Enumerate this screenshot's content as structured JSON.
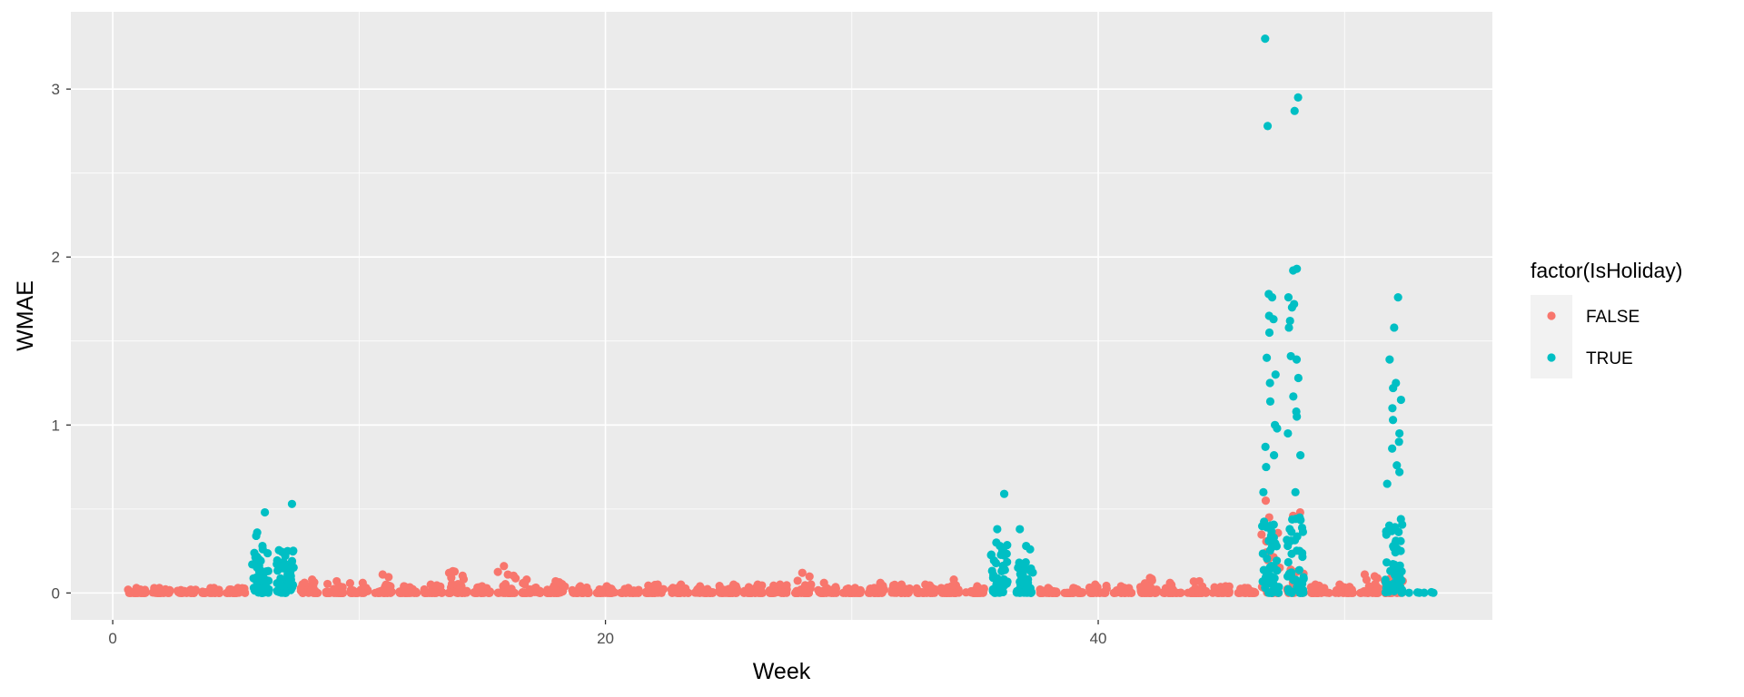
{
  "chart_data": {
    "type": "scatter",
    "xlabel": "Week",
    "ylabel": "WMAE",
    "xlim": [
      -1.7,
      56
    ],
    "ylim": [
      -0.16,
      3.46
    ],
    "x_ticks": [
      0,
      20,
      40
    ],
    "x_tick_labels": [
      "0",
      "20",
      "40"
    ],
    "y_ticks": [
      0,
      1,
      2,
      3
    ],
    "y_tick_labels": [
      "0",
      "1",
      "2",
      "3"
    ],
    "grid": true,
    "legend": {
      "title": "factor(IsHoliday)",
      "position": "right",
      "entries": [
        {
          "label": "FALSE",
          "color": "#F8766D"
        },
        {
          "label": "TRUE",
          "color": "#00BFC4"
        }
      ]
    },
    "colors": {
      "FALSE": "#F8766D",
      "TRUE": "#00BFC4",
      "panel": "#EBEBEB",
      "grid": "#FFFFFF"
    },
    "series": [
      {
        "name": "FALSE",
        "week_stats": [
          {
            "week": 1,
            "max": 0.03
          },
          {
            "week": 2,
            "max": 0.03
          },
          {
            "week": 3,
            "max": 0.02
          },
          {
            "week": 4,
            "max": 0.03
          },
          {
            "week": 5,
            "max": 0.03
          },
          {
            "week": 8,
            "max": 0.08
          },
          {
            "week": 9,
            "max": 0.07
          },
          {
            "week": 10,
            "max": 0.06
          },
          {
            "week": 11,
            "max": 0.11
          },
          {
            "week": 12,
            "max": 0.04
          },
          {
            "week": 13,
            "max": 0.05
          },
          {
            "week": 14,
            "max": 0.13
          },
          {
            "week": 15,
            "max": 0.04
          },
          {
            "week": 16,
            "max": 0.16
          },
          {
            "week": 17,
            "max": 0.08
          },
          {
            "week": 18,
            "max": 0.07
          },
          {
            "week": 19,
            "max": 0.04
          },
          {
            "week": 20,
            "max": 0.04
          },
          {
            "week": 21,
            "max": 0.03
          },
          {
            "week": 22,
            "max": 0.05
          },
          {
            "week": 23,
            "max": 0.05
          },
          {
            "week": 24,
            "max": 0.04
          },
          {
            "week": 25,
            "max": 0.05
          },
          {
            "week": 26,
            "max": 0.05
          },
          {
            "week": 27,
            "max": 0.05
          },
          {
            "week": 28,
            "max": 0.12
          },
          {
            "week": 29,
            "max": 0.06
          },
          {
            "week": 30,
            "max": 0.03
          },
          {
            "week": 31,
            "max": 0.06
          },
          {
            "week": 32,
            "max": 0.05
          },
          {
            "week": 33,
            "max": 0.05
          },
          {
            "week": 34,
            "max": 0.08
          },
          {
            "week": 35,
            "max": 0.04
          },
          {
            "week": 38,
            "max": 0.03
          },
          {
            "week": 39,
            "max": 0.03
          },
          {
            "week": 40,
            "max": 0.05
          },
          {
            "week": 41,
            "max": 0.04
          },
          {
            "week": 42,
            "max": 0.09
          },
          {
            "week": 43,
            "max": 0.06
          },
          {
            "week": 44,
            "max": 0.07
          },
          {
            "week": 45,
            "max": 0.04
          },
          {
            "week": 46,
            "max": 0.03
          },
          {
            "week": 47,
            "max": 0.55
          },
          {
            "week": 48,
            "max": 0.48
          },
          {
            "week": 49,
            "max": 0.05
          },
          {
            "week": 50,
            "max": 0.05
          },
          {
            "week": 51,
            "max": 0.11
          },
          {
            "week": 52,
            "max": 0.1
          }
        ]
      },
      {
        "name": "TRUE",
        "week_stats": [
          {
            "week": 6,
            "max": 0.48,
            "outliers": [
              0.48,
              0.36,
              0.34,
              0.28,
              0.26
            ]
          },
          {
            "week": 7,
            "max": 0.53,
            "outliers": [
              0.53,
              0.22,
              0.19
            ]
          },
          {
            "week": 36,
            "max": 0.59,
            "outliers": [
              0.59,
              0.38,
              0.3,
              0.28
            ]
          },
          {
            "week": 37,
            "max": 0.38,
            "outliers": [
              0.38,
              0.28,
              0.26
            ]
          },
          {
            "week": 47,
            "max": 3.3,
            "outliers": [
              3.3,
              2.78,
              1.78,
              1.76,
              1.65,
              1.63,
              1.55,
              1.4,
              1.3,
              1.25,
              1.14,
              1.0,
              0.98,
              0.87,
              0.82,
              0.75,
              0.6
            ]
          },
          {
            "week": 48,
            "max": 2.95,
            "outliers": [
              2.95,
              2.87,
              1.93,
              1.92,
              1.76,
              1.72,
              1.7,
              1.62,
              1.58,
              1.41,
              1.39,
              1.28,
              1.17,
              1.08,
              1.05,
              0.95,
              0.82,
              0.6
            ]
          },
          {
            "week": 52,
            "max": 1.76,
            "outliers": [
              1.76,
              1.58,
              1.39,
              1.25,
              1.22,
              1.15,
              1.1,
              1.03,
              0.95,
              0.9,
              0.86,
              0.76,
              0.72,
              0.65
            ]
          },
          {
            "week": 53,
            "max": 0.01,
            "outliers": []
          }
        ]
      }
    ]
  }
}
